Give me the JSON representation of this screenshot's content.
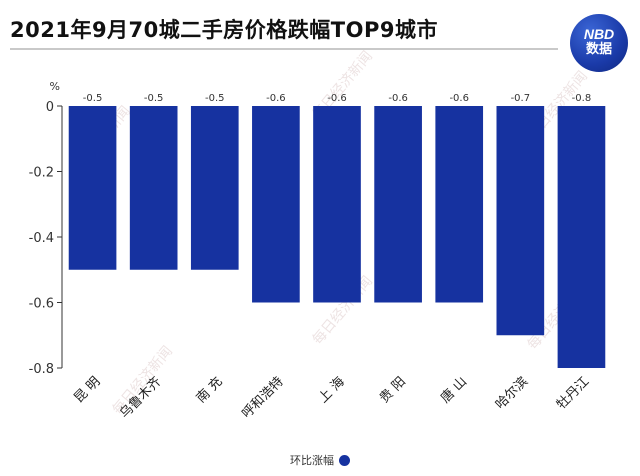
{
  "title": "2021年9月70城二手房价格跌幅TOP9城市",
  "logo": {
    "line1": "NBD",
    "line2": "数据"
  },
  "watermark": "每日经济新闻",
  "legend_label": "环比涨幅",
  "colors": {
    "bar": "#1632a0",
    "axis": "#333333"
  },
  "chart_data": {
    "type": "bar",
    "title": "2021年9月70城二手房价格跌幅TOP9城市",
    "ylabel": "%",
    "xlabel": "",
    "categories": [
      "昆 明",
      "乌鲁木齐",
      "南 充",
      "呼和浩特",
      "上 海",
      "贵 阳",
      "唐 山",
      "哈尔滨",
      "牡丹江"
    ],
    "series": [
      {
        "name": "环比涨幅",
        "values": [
          -0.5,
          -0.5,
          -0.5,
          -0.6,
          -0.6,
          -0.6,
          -0.6,
          -0.7,
          -0.8
        ]
      }
    ],
    "data_labels": [
      "-0.5",
      "-0.5",
      "-0.5",
      "-0.6",
      "-0.6",
      "-0.6",
      "-0.6",
      "-0.7",
      "-0.8"
    ],
    "ylim": [
      -0.8,
      0
    ],
    "yticks": [
      0,
      -0.2,
      -0.4,
      -0.6,
      -0.8
    ],
    "ytick_labels": [
      "0",
      "-0.2",
      "-0.4",
      "-0.6",
      "-0.8"
    ],
    "grid": false,
    "legend_position": "bottom-center"
  }
}
